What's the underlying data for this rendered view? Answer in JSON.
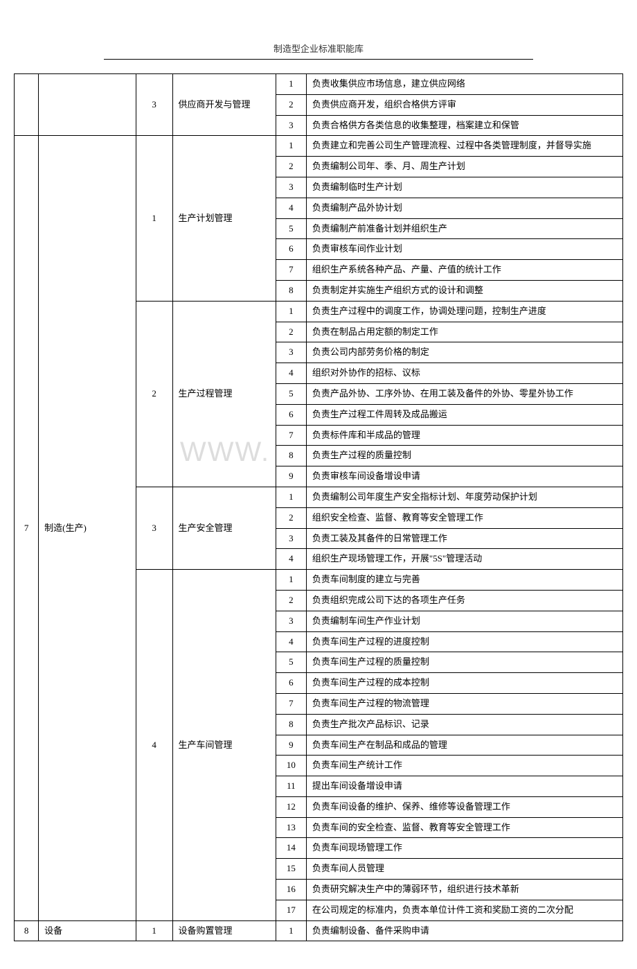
{
  "header": {
    "title": "制造型企业标准职能库"
  },
  "watermark": "WWW.",
  "sections": [
    {
      "category_num": "",
      "category_name": "",
      "sub": [
        {
          "sub_num": "3",
          "sub_name": "供应商开发与管理",
          "items": [
            {
              "n": "1",
              "desc": "负责收集供应市场信息，建立供应网络"
            },
            {
              "n": "2",
              "desc": "负责供应商开发，组织合格供方评审"
            },
            {
              "n": "3",
              "desc": "负责合格供方各类信息的收集整理，档案建立和保管"
            }
          ]
        }
      ]
    },
    {
      "category_num": "7",
      "category_name": "制造(生产)",
      "sub": [
        {
          "sub_num": "1",
          "sub_name": "生产计划管理",
          "items": [
            {
              "n": "1",
              "desc": "负责建立和完善公司生产管理流程、过程中各类管理制度，并督导实施"
            },
            {
              "n": "2",
              "desc": "负责编制公司年、季、月、周生产计划"
            },
            {
              "n": "3",
              "desc": "负责编制临时生产计划"
            },
            {
              "n": "4",
              "desc": "负责编制产品外协计划"
            },
            {
              "n": "5",
              "desc": "负责编制产前准备计划并组织生产"
            },
            {
              "n": "6",
              "desc": "负责审核车间作业计划"
            },
            {
              "n": "7",
              "desc": "组织生产系统各种产品、产量、产值的统计工作"
            },
            {
              "n": "8",
              "desc": "负责制定并实施生产组织方式的设计和调整"
            }
          ]
        },
        {
          "sub_num": "2",
          "sub_name": "生产过程管理",
          "items": [
            {
              "n": "1",
              "desc": "负责生产过程中的调度工作，协调处理问题，控制生产进度"
            },
            {
              "n": "2",
              "desc": "负责在制品占用定额的制定工作"
            },
            {
              "n": "3",
              "desc": "负责公司内部劳务价格的制定"
            },
            {
              "n": "4",
              "desc": "组织对外协作的招标、议标"
            },
            {
              "n": "5",
              "desc": "负责产品外协、工序外协、在用工装及备件的外协、零星外协工作"
            },
            {
              "n": "6",
              "desc": "负责生产过程工件周转及成品搬运"
            },
            {
              "n": "7",
              "desc": "负责标件库和半成品的管理"
            },
            {
              "n": "8",
              "desc": "负责生产过程的质量控制"
            },
            {
              "n": "9",
              "desc": "负责审核车间设备增设申请"
            }
          ]
        },
        {
          "sub_num": "3",
          "sub_name": "生产安全管理",
          "items": [
            {
              "n": "1",
              "desc": "负责编制公司年度生产安全指标计划、年度劳动保护计划"
            },
            {
              "n": "2",
              "desc": "组织安全检查、监督、教育等安全管理工作"
            },
            {
              "n": "3",
              "desc": "负责工装及其备件的日常管理工作"
            },
            {
              "n": "4",
              "desc": "组织生产现场管理工作，开展\"5S\"管理活动"
            }
          ]
        },
        {
          "sub_num": "4",
          "sub_name": "生产车间管理",
          "items": [
            {
              "n": "1",
              "desc": "负责车间制度的建立与完善"
            },
            {
              "n": "2",
              "desc": "负责组织完成公司下达的各项生产任务"
            },
            {
              "n": "3",
              "desc": "负责编制车间生产作业计划"
            },
            {
              "n": "4",
              "desc": "负责车间生产过程的进度控制"
            },
            {
              "n": "5",
              "desc": "负责车间生产过程的质量控制"
            },
            {
              "n": "6",
              "desc": "负责车间生产过程的成本控制"
            },
            {
              "n": "7",
              "desc": "负责车间生产过程的物流管理"
            },
            {
              "n": "8",
              "desc": "负责生产批次产品标识、记录"
            },
            {
              "n": "9",
              "desc": "负责车间生产在制品和成品的管理"
            },
            {
              "n": "10",
              "desc": "负责车间生产统计工作"
            },
            {
              "n": "11",
              "desc": "提出车间设备增设申请"
            },
            {
              "n": "12",
              "desc": "负责车间设备的维护、保养、维修等设备管理工作"
            },
            {
              "n": "13",
              "desc": "负责车间的安全检查、监督、教育等安全管理工作"
            },
            {
              "n": "14",
              "desc": "负责车间现场管理工作"
            },
            {
              "n": "15",
              "desc": "负责车间人员管理"
            },
            {
              "n": "16",
              "desc": "负责研究解决生产中的薄弱环节，组织进行技术革新"
            },
            {
              "n": "17",
              "desc": "在公司规定的标准内，负责本单位计件工资和奖励工资的二次分配"
            }
          ]
        }
      ]
    },
    {
      "category_num": "8",
      "category_name": "设备",
      "sub": [
        {
          "sub_num": "1",
          "sub_name": "设备购置管理",
          "items": [
            {
              "n": "1",
              "desc": "负责编制设备、备件采购申请"
            }
          ]
        }
      ]
    }
  ]
}
